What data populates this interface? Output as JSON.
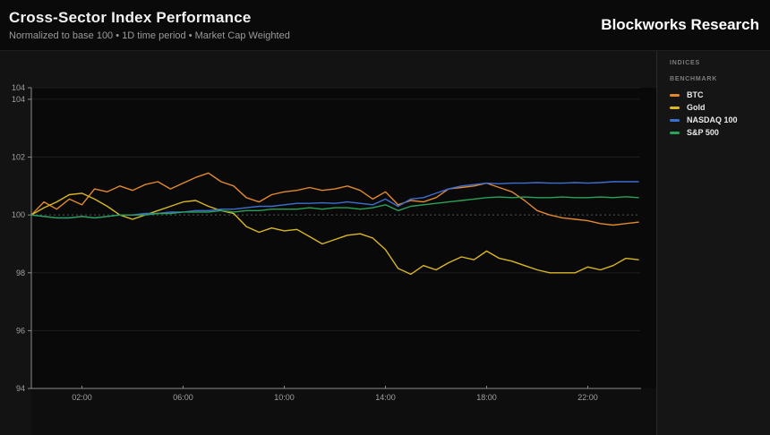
{
  "header": {
    "title": "Cross-Sector Index Performance",
    "subtitle": "Normalized to base 100 • 1D time period • Market Cap Weighted",
    "brand": "Blockworks Research"
  },
  "sidebar": {
    "section_label": "INDICES",
    "group_label": "BENCHMARK"
  },
  "chart_data": {
    "type": "line",
    "title": "Cross-Sector Index Performance",
    "x_unit": "time of day (hours)",
    "xlim": [
      0,
      24
    ],
    "ylim": [
      94,
      104.4
    ],
    "y_ticks": [
      94,
      96,
      98,
      100,
      102,
      104
    ],
    "y_axis_top_label": "104",
    "x_tick_labels": [
      "02:00",
      "06:00",
      "10:00",
      "14:00",
      "18:00",
      "22:00"
    ],
    "x_tick_hours": [
      2,
      6,
      10,
      14,
      18,
      22
    ],
    "baseline": 100,
    "grid": "horizontal-faint",
    "legend_position": "right",
    "colors": {
      "axis": "#8a8a8a",
      "grid": "#1d1d1d",
      "baseline_dash": "#565656",
      "tick_label": "#a0a0a0",
      "plot_bg": "#090909"
    },
    "x": [
      0,
      0.5,
      1,
      1.5,
      2,
      2.5,
      3,
      3.5,
      4,
      4.5,
      5,
      5.5,
      6,
      6.5,
      7,
      7.5,
      8,
      8.5,
      9,
      9.5,
      10,
      10.5,
      11,
      11.5,
      12,
      12.5,
      13,
      13.5,
      14,
      14.5,
      15,
      15.5,
      16,
      16.5,
      17,
      17.5,
      18,
      18.5,
      19,
      19.5,
      20,
      20.5,
      21,
      21.5,
      22,
      22.5,
      23,
      23.5,
      24
    ],
    "series": [
      {
        "name": "BTC",
        "color": "#e1892e",
        "values": [
          100,
          100.45,
          100.2,
          100.55,
          100.35,
          100.9,
          100.8,
          101,
          100.85,
          101.05,
          101.15,
          100.9,
          101.1,
          101.3,
          101.45,
          101.15,
          101,
          100.6,
          100.45,
          100.7,
          100.8,
          100.85,
          100.95,
          100.85,
          100.9,
          101,
          100.85,
          100.55,
          100.8,
          100.35,
          100.5,
          100.45,
          100.6,
          100.9,
          100.95,
          101,
          101.1,
          100.95,
          100.8,
          100.5,
          100.15,
          100,
          99.9,
          99.85,
          99.8,
          99.7,
          99.65,
          99.7,
          99.75
        ]
      },
      {
        "name": "Gold",
        "color": "#d9b821",
        "values": [
          100,
          100.25,
          100.45,
          100.7,
          100.75,
          100.55,
          100.3,
          100,
          99.85,
          100,
          100.15,
          100.3,
          100.45,
          100.5,
          100.3,
          100.15,
          100.05,
          99.6,
          99.4,
          99.55,
          99.45,
          99.5,
          99.25,
          99,
          99.15,
          99.3,
          99.35,
          99.2,
          98.8,
          98.15,
          97.95,
          98.25,
          98.1,
          98.35,
          98.55,
          98.45,
          98.75,
          98.5,
          98.4,
          98.25,
          98.1,
          98,
          98,
          98,
          98.2,
          98.1,
          98.25,
          98.5,
          98.45
        ]
      },
      {
        "name": "NASDAQ 100",
        "color": "#3e6fd0",
        "values": [
          100,
          99.95,
          99.9,
          99.9,
          99.95,
          99.9,
          99.95,
          100,
          100,
          100.05,
          100.05,
          100.1,
          100.1,
          100.15,
          100.15,
          100.2,
          100.2,
          100.25,
          100.3,
          100.3,
          100.35,
          100.4,
          100.4,
          100.42,
          100.4,
          100.45,
          100.4,
          100.35,
          100.55,
          100.3,
          100.55,
          100.6,
          100.75,
          100.9,
          101,
          101.05,
          101.1,
          101.08,
          101.1,
          101.1,
          101.12,
          101.1,
          101.1,
          101.12,
          101.1,
          101.12,
          101.15,
          101.15,
          101.15
        ]
      },
      {
        "name": "S&P 500",
        "color": "#29a35a",
        "values": [
          100,
          99.95,
          99.9,
          99.9,
          99.95,
          99.9,
          99.95,
          100,
          100,
          100,
          100.05,
          100.05,
          100.1,
          100.1,
          100.1,
          100.15,
          100.1,
          100.15,
          100.15,
          100.2,
          100.2,
          100.2,
          100.25,
          100.2,
          100.25,
          100.25,
          100.2,
          100.25,
          100.35,
          100.15,
          100.3,
          100.35,
          100.4,
          100.45,
          100.5,
          100.55,
          100.6,
          100.62,
          100.6,
          100.62,
          100.6,
          100.6,
          100.62,
          100.6,
          100.6,
          100.62,
          100.6,
          100.63,
          100.6
        ]
      }
    ]
  }
}
